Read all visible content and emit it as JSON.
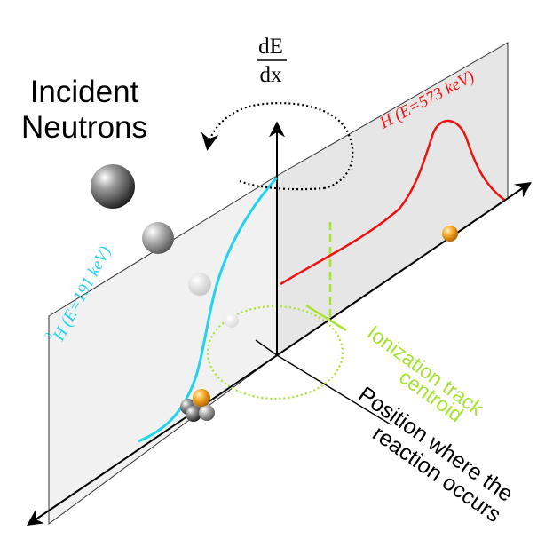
{
  "labels": {
    "incident_line1": "Incident",
    "incident_line2": "Neutrons",
    "dedx_numerator": "dE",
    "dedx_denominator": "dx",
    "tritium_mass_number": "3",
    "tritium_label": "H (E=191 keV)",
    "proton_label": "H (E=573 keV)",
    "centroid_line1": "Ionization track",
    "centroid_line2": "centroid",
    "position_line1": "Position where the",
    "position_line2": "reaction occurs"
  },
  "colors": {
    "axis": "#000000",
    "plane_left": "#f1f1f1",
    "plane_right": "#e6e6e6",
    "tritium_curve": "#22d3ee",
    "proton_curve": "#ee1111",
    "centroid": "#a6e22e",
    "reaction_point": "#f5a623"
  },
  "icons": {
    "neutron": "gray-sphere",
    "reaction_point": "orange-sphere",
    "nucleus": "nucleus-cluster",
    "rotation": "dotted-rotation-arrow"
  }
}
